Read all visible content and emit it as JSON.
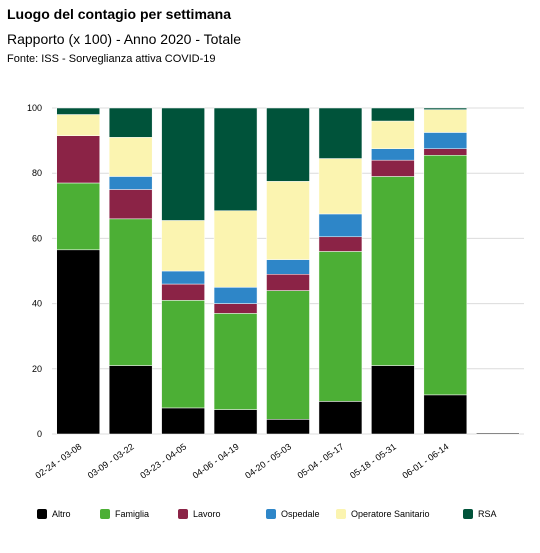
{
  "title": "Luogo del contagio per settimana",
  "subtitle": "Rapporto (x 100) - Anno 2020 - Totale",
  "source": "Fonte: ISS - Sorveglianza attiva COVID-19",
  "chart_data": {
    "type": "bar",
    "stacked": true,
    "categories": [
      "02-24 - 03-08",
      "03-09 - 03-22",
      "03-23 - 04-05",
      "04-06 - 04-19",
      "04-20 - 05-03",
      "05-04 - 05-17",
      "05-18 - 05-31",
      "06-01 - 06-14",
      ""
    ],
    "series": [
      {
        "name": "Altro",
        "color": "#000000",
        "values": [
          56.5,
          21.0,
          8.0,
          7.5,
          4.5,
          10.0,
          21.0,
          12.0,
          0.3
        ]
      },
      {
        "name": "Famiglia",
        "color": "#4caf35",
        "values": [
          20.5,
          45.0,
          33.0,
          29.5,
          39.5,
          46.0,
          58.0,
          73.5,
          0
        ]
      },
      {
        "name": "Lavoro",
        "color": "#8b2346",
        "values": [
          14.5,
          9.0,
          5.0,
          3.0,
          5.0,
          4.5,
          5.0,
          2.0,
          0
        ]
      },
      {
        "name": "Ospedale",
        "color": "#2e86c8",
        "values": [
          0,
          4.0,
          4.0,
          5.0,
          4.5,
          7.0,
          3.5,
          5.0,
          0
        ]
      },
      {
        "name": "Operatore Sanitario",
        "color": "#fbf4b0",
        "values": [
          6.5,
          12.0,
          15.5,
          23.5,
          24.0,
          17.0,
          8.5,
          7.0,
          0
        ]
      },
      {
        "name": "RSA",
        "color": "#00533a",
        "values": [
          2.0,
          9.0,
          34.5,
          31.5,
          22.5,
          15.5,
          4.0,
          0.5,
          0
        ]
      }
    ],
    "ylim": [
      0,
      100
    ],
    "yticks": [
      0,
      20,
      40,
      60,
      80,
      100
    ],
    "grid": true,
    "legend_position": "bottom"
  }
}
